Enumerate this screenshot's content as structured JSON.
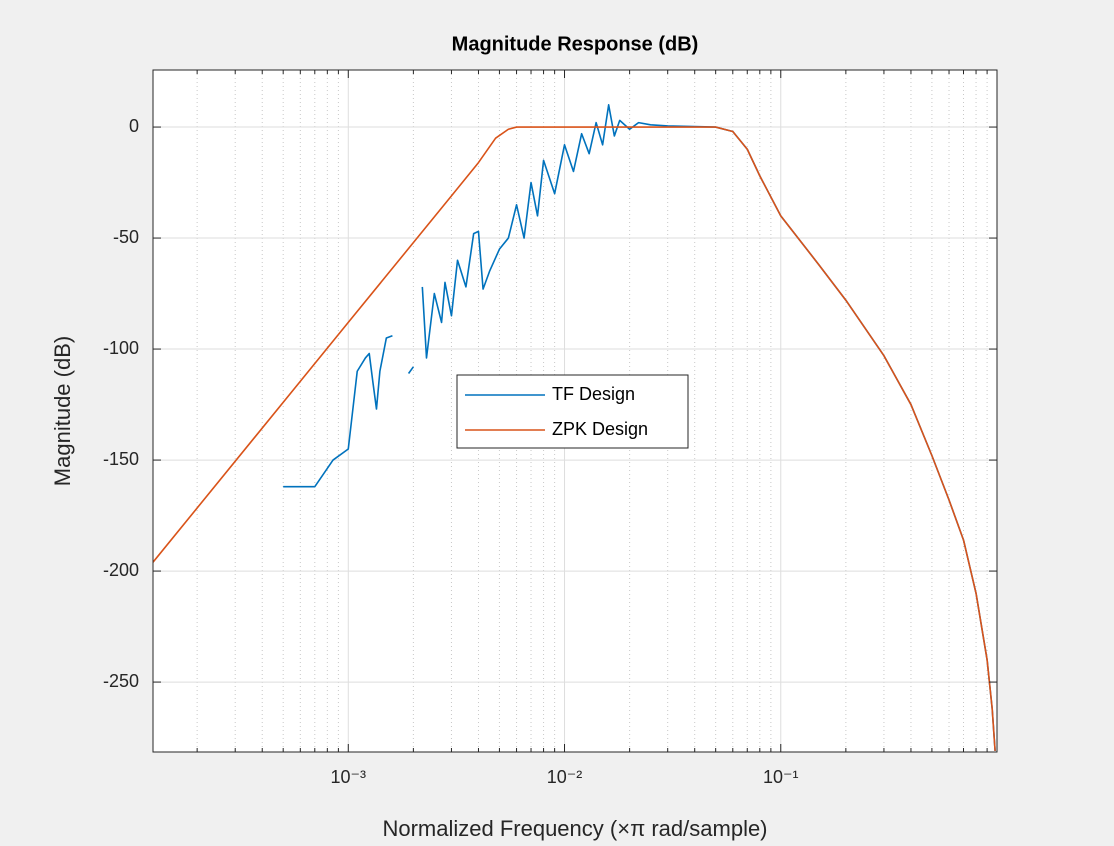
{
  "chart_data": {
    "type": "line",
    "title": "Magnitude Response (dB)",
    "xlabel": "Normalized Frequency  (×π rad/sample)",
    "ylabel": "Magnitude (dB)",
    "xscale": "log",
    "xlim": [
      0.000125,
      1
    ],
    "ylim": [
      -281.5,
      25.7
    ],
    "xticks": [
      {
        "value": 0.001,
        "label": "10⁻³"
      },
      {
        "value": 0.01,
        "label": "10⁻²"
      },
      {
        "value": 0.1,
        "label": "10⁻¹"
      }
    ],
    "xminorticks": [
      0.0002,
      0.0003,
      0.0004,
      0.0005,
      0.0006,
      0.0007,
      0.0008,
      0.0009,
      0.002,
      0.003,
      0.004,
      0.005,
      0.006,
      0.007,
      0.008,
      0.009,
      0.02,
      0.03,
      0.04,
      0.05,
      0.06,
      0.07,
      0.08,
      0.09,
      0.2,
      0.3,
      0.4,
      0.5,
      0.6,
      0.7,
      0.8,
      0.9
    ],
    "yticks": [
      -250,
      -200,
      -150,
      -100,
      -50,
      0
    ],
    "grid": true,
    "minor_grid": true,
    "series": [
      {
        "name": "TF Design",
        "color": "#0072bd",
        "x": [
          0.0005,
          0.0007,
          0.00085,
          0.001,
          0.0011,
          0.0012,
          0.00125,
          0.0013,
          0.00135,
          0.0014,
          0.0015,
          0.0016,
          0.0017,
          0.0019,
          0.002,
          0.0021,
          0.0022,
          0.0023,
          0.0025,
          0.0027,
          0.0028,
          0.003,
          0.0032,
          0.0035,
          0.0038,
          0.004,
          0.0042,
          0.0045,
          0.005,
          0.0055,
          0.006,
          0.0065,
          0.007,
          0.0075,
          0.008,
          0.009,
          0.01,
          0.011,
          0.012,
          0.013,
          0.014,
          0.015,
          0.016,
          0.017,
          0.018,
          0.02,
          0.022,
          0.025,
          0.03,
          0.05,
          0.06,
          0.07,
          0.08,
          0.1,
          0.15,
          0.2,
          0.3,
          0.4,
          0.5,
          0.6,
          0.7,
          0.8,
          0.9,
          0.95,
          0.98
        ],
        "values": [
          -162,
          -162,
          -150,
          -145,
          -110,
          -104,
          -102,
          -115,
          -127,
          -110,
          -95,
          -94,
          null,
          -111,
          -108,
          null,
          -72,
          -104,
          -75,
          -88,
          -70,
          -85,
          -60,
          -72,
          -48,
          -47,
          -73,
          -65,
          -55,
          -50,
          -35,
          -50,
          -25,
          -40,
          -15,
          -30,
          -8,
          -20,
          -3,
          -12,
          2,
          -8,
          10,
          -4,
          3,
          -1,
          2,
          1,
          0.5,
          0,
          -2,
          -10,
          -22,
          -40,
          -62,
          -78,
          -103,
          -125,
          -148,
          -168,
          -186,
          -210,
          -240,
          -262,
          -281
        ]
      },
      {
        "name": "ZPK Design",
        "color": "#d95319",
        "x": [
          0.000125,
          0.001,
          0.003,
          0.004,
          0.0048,
          0.0055,
          0.006,
          0.05,
          0.06,
          0.07,
          0.08,
          0.1,
          0.15,
          0.2,
          0.3,
          0.4,
          0.5,
          0.6,
          0.7,
          0.8,
          0.9,
          0.95,
          0.98
        ],
        "values": [
          -196,
          -88,
          -31,
          -16,
          -5,
          -1,
          0,
          0,
          -2,
          -10,
          -22,
          -40,
          -62,
          -78,
          -103,
          -125,
          -148,
          -168,
          -186,
          -210,
          -240,
          -262,
          -281
        ]
      }
    ]
  }
}
